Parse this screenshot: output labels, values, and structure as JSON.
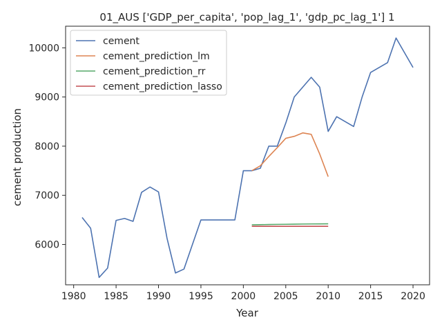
{
  "chart_data": {
    "type": "line",
    "title": "01_AUS ['GDP_per_capita', 'pop_lag_1', 'gdp_pc_lag_1'] 1",
    "xlabel": "Year",
    "ylabel": "cement production",
    "xlim": [
      1979.05,
      2021.95
    ],
    "ylim": [
      5180,
      10440
    ],
    "xticks": [
      1980,
      1985,
      1990,
      1995,
      2000,
      2005,
      2010,
      2015,
      2020
    ],
    "yticks": [
      6000,
      7000,
      8000,
      9000,
      10000
    ],
    "grid": false,
    "legend_position": "top-left",
    "series": [
      {
        "name": "cement",
        "color": "#4c72b0",
        "x": [
          1981,
          1982,
          1983,
          1984,
          1985,
          1986,
          1987,
          1988,
          1989,
          1990,
          1991,
          1992,
          1993,
          1994,
          1995,
          1996,
          1997,
          1998,
          1999,
          2000,
          2001,
          2002,
          2003,
          2004,
          2005,
          2006,
          2007,
          2008,
          2009,
          2010,
          2011,
          2012,
          2013,
          2014,
          2015,
          2016,
          2017,
          2018,
          2019,
          2020
        ],
        "values": [
          6550,
          6330,
          5330,
          5520,
          6490,
          6530,
          6470,
          7060,
          7170,
          7070,
          6130,
          5420,
          5500,
          6000,
          6500,
          6500,
          6500,
          6500,
          6500,
          7500,
          7500,
          7550,
          8000,
          8000,
          8470,
          9000,
          9200,
          9400,
          9200,
          8300,
          8600,
          8500,
          8400,
          9000,
          9500,
          9600,
          9700,
          10200,
          9900,
          9600
        ]
      },
      {
        "name": "cement_prediction_lm",
        "color": "#dd8452",
        "x": [
          2001,
          2002,
          2003,
          2004,
          2005,
          2006,
          2007,
          2008,
          2009,
          2010
        ],
        "values": [
          7500,
          7600,
          7790,
          7970,
          8160,
          8200,
          8270,
          8240,
          7840,
          7380
        ]
      },
      {
        "name": "cement_prediction_rr",
        "color": "#55a868",
        "x": [
          2001,
          2002,
          2003,
          2004,
          2005,
          2006,
          2007,
          2008,
          2009,
          2010
        ],
        "values": [
          6400,
          6403,
          6406,
          6409,
          6411,
          6414,
          6416,
          6418,
          6419,
          6420
        ]
      },
      {
        "name": "cement_prediction_lasso",
        "color": "#c44e52",
        "x": [
          2001,
          2002,
          2003,
          2004,
          2005,
          2006,
          2007,
          2008,
          2009,
          2010
        ],
        "values": [
          6370,
          6370,
          6370,
          6370,
          6370,
          6370,
          6370,
          6370,
          6370,
          6370
        ]
      }
    ]
  }
}
